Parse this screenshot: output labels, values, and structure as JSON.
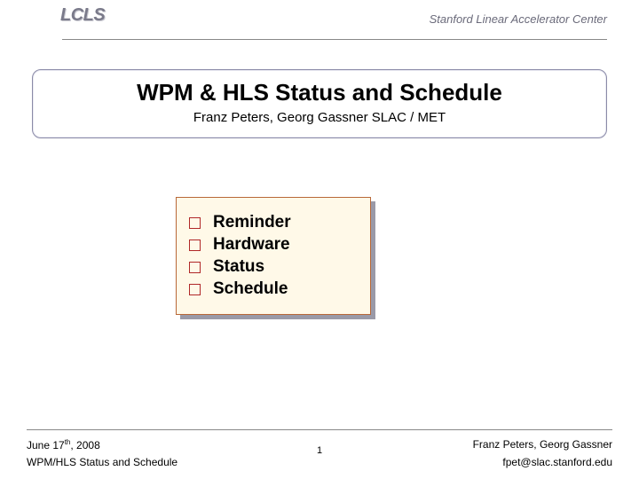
{
  "header": {
    "logo_text": "LCLS",
    "right_text": "Stanford Linear Accelerator Center"
  },
  "title_block": {
    "title": "WPM & HLS Status and Schedule",
    "subtitle": "Franz Peters, Georg Gassner SLAC / MET"
  },
  "topics": {
    "items": [
      "Reminder",
      "Hardware",
      "Status",
      "Schedule"
    ],
    "bullet_border_color": "#b02828",
    "box_bg": "#fff9e8",
    "box_border": "#b86838",
    "box_shadow": "#9a9aa8",
    "label_fontsize": 19
  },
  "footer": {
    "date_prefix": "June 17",
    "date_sup": "th",
    "date_suffix": ", 2008",
    "left2": "WPM/HLS Status and Schedule",
    "page": "1",
    "right1": "Franz Peters, Georg Gassner",
    "right2": "fpet@slac.stanford.edu"
  },
  "colors": {
    "rule": "#888888",
    "text": "#000000",
    "logo": "#7a7a8a"
  }
}
